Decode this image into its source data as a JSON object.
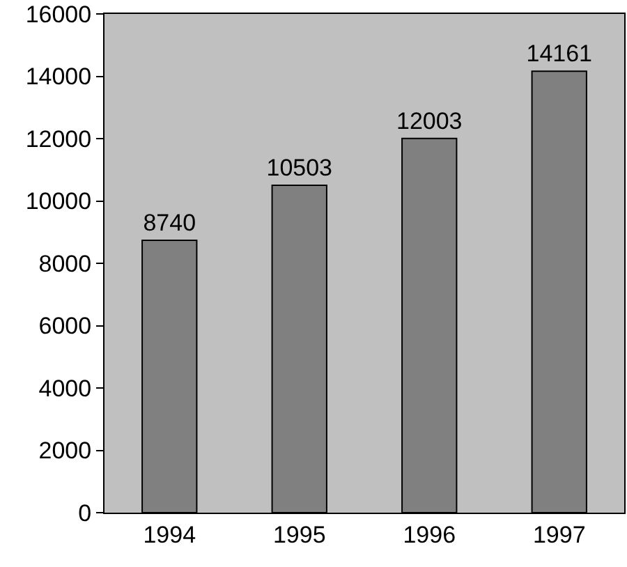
{
  "chart_data": {
    "type": "bar",
    "categories": [
      "1994",
      "1995",
      "1996",
      "1997"
    ],
    "values": [
      8740,
      10503,
      12003,
      14161
    ],
    "color": "#808080",
    "ylim": [
      0,
      16000
    ],
    "yticks": [
      0,
      2000,
      4000,
      6000,
      8000,
      10000,
      12000,
      14000,
      16000
    ],
    "grid": false,
    "data_labels": true
  }
}
